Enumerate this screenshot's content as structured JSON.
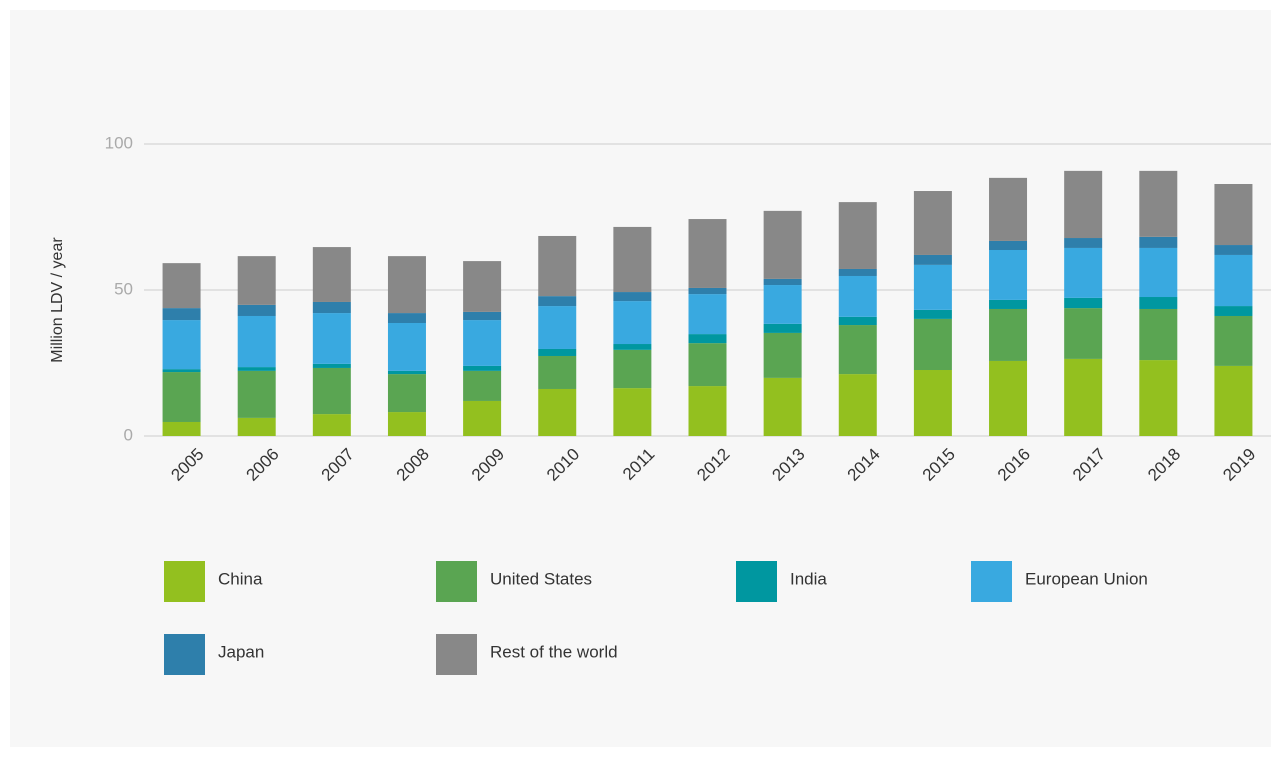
{
  "chart_data": {
    "type": "stacked-bar",
    "y_label": "Million LDV / year",
    "categories": [
      "2005",
      "2006",
      "2007",
      "2008",
      "2009",
      "2010",
      "2011",
      "2012",
      "2013",
      "2014",
      "2015",
      "2016",
      "2017",
      "2018",
      "2019"
    ],
    "series": [
      {
        "name": "China",
        "color": "#93c01f",
        "values": [
          4.8,
          6.2,
          7.5,
          8.2,
          12.0,
          16.1,
          16.4,
          17.1,
          19.9,
          21.2,
          22.6,
          25.7,
          26.4,
          26.0,
          24.0
        ]
      },
      {
        "name": "United States",
        "color": "#5aa552",
        "values": [
          17.1,
          16.1,
          15.8,
          13.0,
          10.3,
          11.3,
          13.1,
          14.7,
          15.4,
          16.8,
          17.5,
          17.8,
          17.4,
          17.5,
          17.1
        ]
      },
      {
        "name": "India",
        "color": "#0097a0",
        "values": [
          1.0,
          1.3,
          1.4,
          1.1,
          1.7,
          2.4,
          2.0,
          3.1,
          3.1,
          2.8,
          3.1,
          3.1,
          3.5,
          4.1,
          3.4
        ]
      },
      {
        "name": "European Union",
        "color": "#39a9e0",
        "values": [
          16.8,
          17.5,
          17.4,
          16.4,
          15.7,
          14.7,
          14.7,
          13.7,
          13.3,
          14.0,
          15.4,
          17.1,
          17.1,
          16.8,
          17.5
        ]
      },
      {
        "name": "Japan",
        "color": "#2e7fab",
        "values": [
          4.1,
          3.8,
          3.8,
          3.4,
          2.8,
          3.4,
          3.1,
          2.1,
          2.1,
          2.4,
          3.4,
          3.1,
          3.4,
          3.8,
          3.4
        ]
      },
      {
        "name": "Rest of the world",
        "color": "#888888",
        "values": [
          15.4,
          16.7,
          18.8,
          19.5,
          17.4,
          20.6,
          22.3,
          23.6,
          23.3,
          22.9,
          21.9,
          21.6,
          23.0,
          22.6,
          20.9
        ]
      }
    ],
    "ylim": [
      0,
      100
    ],
    "yticks": [
      0,
      50,
      100
    ],
    "grid": true
  }
}
